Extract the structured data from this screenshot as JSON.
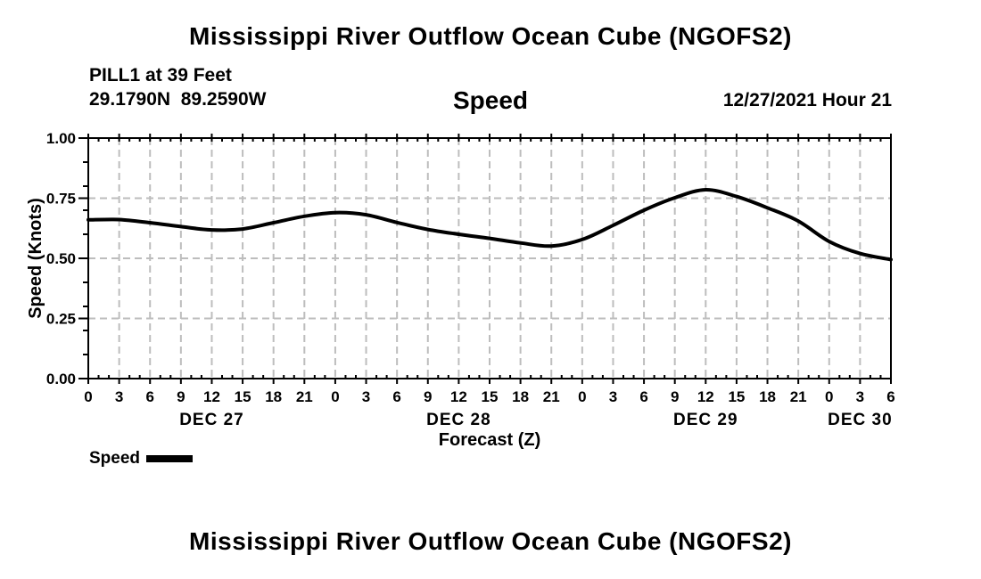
{
  "page": {
    "title_top": "Mississippi River Outflow Ocean Cube (NGOFS2)",
    "title_bottom": "Mississippi River Outflow Ocean Cube (NGOFS2)"
  },
  "header": {
    "station_line1": "PILL1 at 39 Feet",
    "station_line2": "29.1790N  89.2590W",
    "plot_label": "Speed",
    "forecast_ref": "12/27/2021 Hour 21"
  },
  "legend": {
    "label": "Speed"
  },
  "chart_data": {
    "type": "line",
    "title": "Speed",
    "xlabel": "Forecast (Z)",
    "ylabel": "Speed (Knots)",
    "x_unit": "forecast hours (Z)",
    "xlim": [
      0,
      78
    ],
    "ylim": [
      0,
      1
    ],
    "x_major_tick_step": 3,
    "x_minor_tick_step": 1,
    "x_tick_labels": [
      "0",
      "3",
      "6",
      "9",
      "12",
      "15",
      "18",
      "21",
      "0",
      "3",
      "6",
      "9",
      "12",
      "15",
      "18",
      "21",
      "0",
      "3",
      "6",
      "9",
      "12",
      "15",
      "18",
      "21",
      "0",
      "3",
      "6"
    ],
    "y_major_ticks": [
      0,
      0.25,
      0.5,
      0.75,
      1.0
    ],
    "y_tick_labels": [
      "0.00",
      "0.25",
      "0.50",
      "0.75",
      "1.00"
    ],
    "y_minor_tick_step": 0.1,
    "date_labels": [
      {
        "label": "DEC 27",
        "center_hour": 12
      },
      {
        "label": "DEC 28",
        "center_hour": 36
      },
      {
        "label": "DEC 29",
        "center_hour": 60
      },
      {
        "label": "DEC 30",
        "center_hour": 75
      }
    ],
    "grid": true,
    "legend_position": "bottom-left",
    "colors": {
      "line": "#000000",
      "grid": "#bdbdbd",
      "text": "#000000",
      "background": "#ffffff"
    },
    "series": [
      {
        "name": "Speed",
        "x_hours": [
          0,
          3,
          6,
          9,
          12,
          15,
          18,
          21,
          24,
          27,
          30,
          33,
          36,
          39,
          42,
          45,
          48,
          51,
          54,
          57,
          60,
          63,
          66,
          69,
          72,
          75,
          78
        ],
        "values": [
          0.66,
          0.661,
          0.648,
          0.632,
          0.618,
          0.622,
          0.648,
          0.675,
          0.69,
          0.681,
          0.649,
          0.62,
          0.6,
          0.583,
          0.564,
          0.551,
          0.578,
          0.637,
          0.7,
          0.752,
          0.785,
          0.757,
          0.71,
          0.655,
          0.57,
          0.52,
          0.495
        ]
      }
    ]
  }
}
